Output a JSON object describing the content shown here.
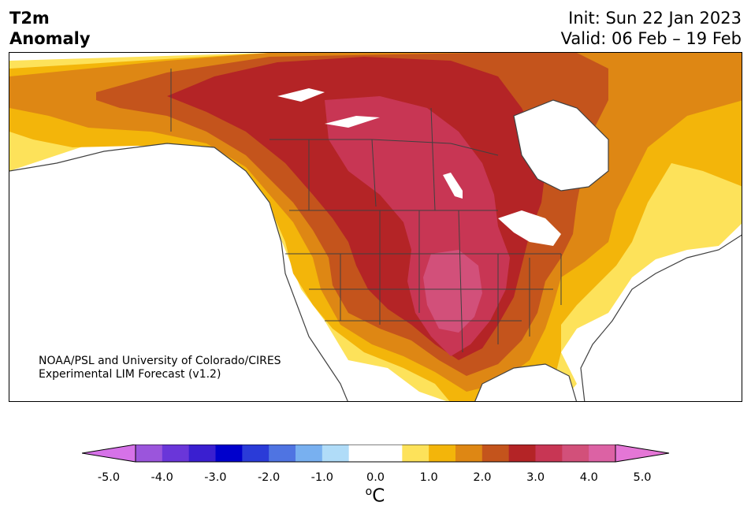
{
  "title": {
    "line1": "T2m",
    "line2": "Anomaly"
  },
  "header_right": {
    "init": "Init: Sun 22 Jan 2023",
    "valid": "Valid: 06 Feb – 19 Feb"
  },
  "credit": {
    "line1": "NOAA/PSL and University of Colorado/CIRES",
    "line2": "Experimental LIM Forecast (v1.2)"
  },
  "colorbar": {
    "unit_base": "C",
    "unit_sup": "o",
    "ticks": [
      "-5.0",
      "-4.0",
      "-3.0",
      "-2.0",
      "-1.0",
      "0.0",
      "1.0",
      "2.0",
      "3.0",
      "4.0",
      "5.0"
    ],
    "extend_low_color": "#d672e8",
    "extend_high_color": "#e476d6",
    "colors": [
      "#d672e8",
      "#9b55dc",
      "#6a36d9",
      "#3a1fd0",
      "#0000cc",
      "#2a3bd8",
      "#4f74e2",
      "#78b0f0",
      "#b0dcf8",
      "#ffffff",
      "#ffffff",
      "#fde25a",
      "#f3b50a",
      "#de8714",
      "#c4541c",
      "#b42426",
      "#c83654",
      "#d2507a",
      "#dc62a4",
      "#e476d6"
    ]
  },
  "map": {
    "region": "North America",
    "ocean_color": "#ffffff",
    "land_fill_warm_colors": [
      "#fde25a",
      "#f3b50a",
      "#de8714",
      "#c4541c",
      "#b42426",
      "#c83654",
      "#d2507a"
    ],
    "boundary_color": "#404040"
  }
}
